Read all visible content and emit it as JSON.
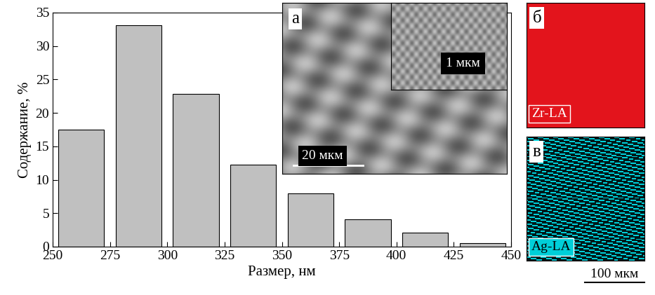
{
  "chart_data": {
    "type": "histogram",
    "bins": [
      250,
      275,
      300,
      325,
      350,
      375,
      400,
      425,
      450
    ],
    "values": [
      17.5,
      33.1,
      22.8,
      12.3,
      8.0,
      4.1,
      2.1,
      0.5
    ],
    "color": "#c0c0c0",
    "xlabel": "Размер, нм",
    "ylabel": "Содержание, %",
    "xlim": [
      250,
      450
    ],
    "xticks": [
      250,
      275,
      300,
      325,
      350,
      375,
      400,
      425,
      450
    ],
    "ylim": [
      0,
      35
    ],
    "yticks": [
      0,
      5,
      10,
      15,
      20,
      25,
      30,
      35
    ],
    "grid": false
  },
  "image_panel": {
    "label": "а",
    "scale_bar": "20 мкм",
    "inset_scale_bar": "1 мкм"
  },
  "maps": [
    {
      "label": "б",
      "element": "Zr-LA",
      "color": "#e3141c"
    },
    {
      "label": "в",
      "element": "Ag-LA",
      "color": "#00cfd8"
    }
  ],
  "maps_scale_bar": "100 мкм"
}
